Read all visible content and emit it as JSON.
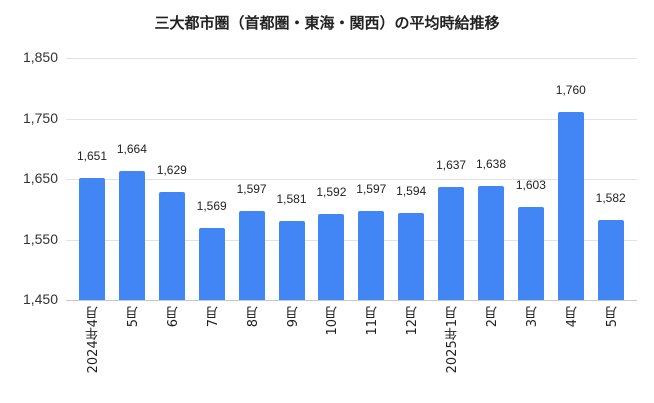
{
  "chart_data": {
    "type": "bar",
    "title": "三大都市圏（首都圏・東海・関西）の平均時給推移",
    "xlabel": "",
    "ylabel": "",
    "ylim": [
      1450,
      1850
    ],
    "yticks": [
      1450,
      1550,
      1650,
      1750,
      1850
    ],
    "ytick_labels": [
      "1,450",
      "1,550",
      "1,650",
      "1,750",
      "1,850"
    ],
    "grid": true,
    "legend": null,
    "bar_color": "#4285f4",
    "categories": [
      "2024年4月",
      "5月",
      "6月",
      "7月",
      "8月",
      "9月",
      "10月",
      "11月",
      "12月",
      "2025年1月",
      "2月",
      "3月",
      "4月",
      "5月"
    ],
    "values": [
      1651,
      1664,
      1629,
      1569,
      1597,
      1581,
      1592,
      1597,
      1594,
      1637,
      1638,
      1603,
      1760,
      1582
    ],
    "value_labels": [
      "1,651",
      "1,664",
      "1,629",
      "1,569",
      "1,597",
      "1,581",
      "1,592",
      "1,597",
      "1,594",
      "1,637",
      "1,638",
      "1,603",
      "1,760",
      "1,582"
    ]
  }
}
